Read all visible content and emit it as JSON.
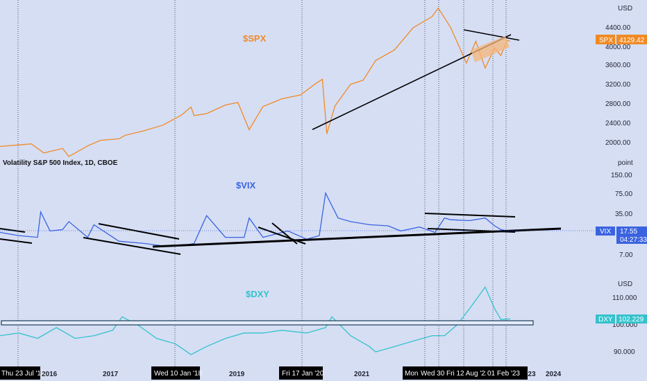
{
  "theme": {
    "background": "#d6def4",
    "spx_color": "#f08a24",
    "vix_color": "#3a63e0",
    "dxy_color": "#33c2cc",
    "trendline_color": "#000000"
  },
  "chart_data": [
    {
      "type": "line",
      "pane": "top",
      "title": "$SPX",
      "unit_label": "USD",
      "y_ticks": [
        "4400.00",
        "4000.00",
        "3600.00",
        "3200.00",
        "2800.00",
        "2400.00",
        "2000.00"
      ],
      "ylim": [
        1700,
        4900
      ],
      "last_value": {
        "label": "SPX",
        "value": "4129.42"
      },
      "series": [
        {
          "x": [
            2015.0,
            2015.3,
            2015.5,
            2015.7,
            2016.0,
            2016.1,
            2016.4,
            2016.6,
            2016.9,
            2017.0,
            2017.3,
            2017.6,
            2017.9,
            2018.05,
            2018.1,
            2018.3,
            2018.6,
            2018.8,
            2018.98,
            2019.2,
            2019.5,
            2019.8,
            2020.05,
            2020.15,
            2020.22,
            2020.35,
            2020.6,
            2020.8,
            2021.0,
            2021.3,
            2021.6,
            2021.9,
            2022.0,
            2022.2,
            2022.45,
            2022.6,
            2022.75,
            2022.9,
            2023.0,
            2023.1,
            2023.15
          ],
          "values": [
            2050,
            2080,
            2100,
            1920,
            2010,
            1850,
            2060,
            2170,
            2200,
            2270,
            2360,
            2470,
            2670,
            2830,
            2660,
            2700,
            2870,
            2920,
            2380,
            2840,
            2990,
            3070,
            3300,
            3380,
            2300,
            2850,
            3280,
            3360,
            3750,
            3960,
            4400,
            4620,
            4790,
            4400,
            3700,
            4130,
            3600,
            4000,
            3850,
            4150,
            4129
          ]
        }
      ]
    },
    {
      "type": "line",
      "pane": "middle",
      "title": "$VIX",
      "subtitle": "Volatility S&P 500 Index, 1D, CBOE",
      "unit_label": "point",
      "y_ticks": [
        "150.00",
        "75.00",
        "35.00",
        "17.55",
        "7.00"
      ],
      "y_scale": "log",
      "last_value": {
        "label": "VIX",
        "value": "17.55",
        "countdown": "04:27:33"
      },
      "series": [
        {
          "x": [
            2015.0,
            2015.3,
            2015.6,
            2015.65,
            2015.8,
            2016.0,
            2016.1,
            2016.4,
            2016.5,
            2016.9,
            2017.3,
            2017.6,
            2017.9,
            2018.1,
            2018.3,
            2018.6,
            2018.9,
            2018.98,
            2019.2,
            2019.6,
            2019.9,
            2020.1,
            2020.2,
            2020.4,
            2020.6,
            2020.9,
            2021.2,
            2021.4,
            2021.7,
            2021.95,
            2022.1,
            2022.2,
            2022.5,
            2022.75,
            2022.9,
            2023.0,
            2023.15
          ],
          "values": [
            17,
            15,
            14,
            38,
            18,
            19,
            26,
            14,
            23,
            12,
            11,
            10,
            10,
            11,
            33,
            14,
            14,
            30,
            14,
            18,
            13,
            15,
            80,
            30,
            26,
            23,
            22,
            18,
            21,
            17,
            30,
            28,
            27,
            30,
            22,
            19,
            17.55
          ]
        }
      ]
    },
    {
      "type": "line",
      "pane": "bottom",
      "title": "$DXY",
      "unit_label": "USD",
      "y_ticks": [
        "110.000",
        "100.000",
        "90.000"
      ],
      "ylim": [
        87,
        117
      ],
      "last_value": {
        "label": "DXY",
        "value": "102.229"
      },
      "series": [
        {
          "x": [
            2015.0,
            2015.3,
            2015.6,
            2015.9,
            2016.2,
            2016.5,
            2016.8,
            2016.95,
            2017.2,
            2017.5,
            2017.8,
            2018.05,
            2018.3,
            2018.6,
            2018.9,
            2019.2,
            2019.5,
            2019.9,
            2020.2,
            2020.3,
            2020.6,
            2020.9,
            2021.0,
            2021.3,
            2021.6,
            2021.9,
            2022.1,
            2022.3,
            2022.5,
            2022.75,
            2022.9,
            2023.0,
            2023.15
          ],
          "values": [
            96,
            97,
            95,
            99,
            95,
            96,
            98,
            103,
            100,
            95,
            93,
            89,
            92,
            95,
            97,
            97,
            98,
            97,
            99,
            103,
            96,
            92,
            90,
            92,
            94,
            96,
            96,
            100,
            106,
            114,
            106,
            102,
            102.229
          ]
        }
      ]
    }
  ],
  "x_axis": {
    "labels": [
      "2016",
      "2017",
      "2019",
      "2021",
      "2024",
      "'23"
    ],
    "highlighted_dates": [
      "Thu 23 Jul '15",
      "Wed 10 Jan '18",
      "Fri 17 Jan '20",
      "Mon",
      "Wed 30",
      "Fri 12 Aug '22",
      "01 Feb '23"
    ]
  }
}
